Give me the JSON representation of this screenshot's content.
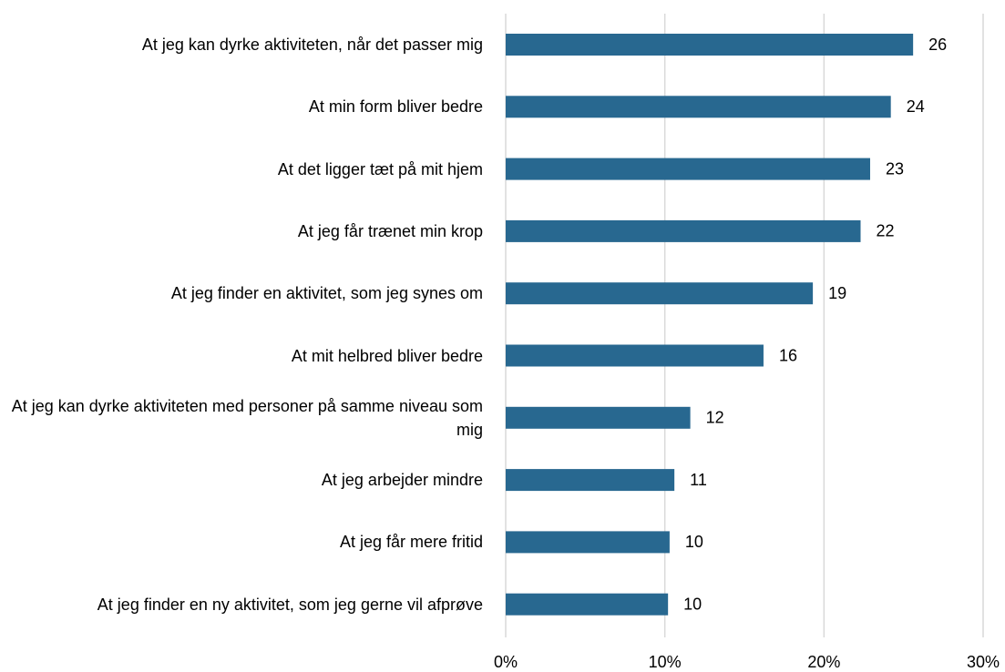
{
  "chart_data": {
    "type": "bar",
    "orientation": "horizontal",
    "categories": [
      "At jeg kan dyrke aktiviteten, når det passer mig",
      "At min form bliver bedre",
      "At det ligger tæt på mit hjem",
      "At jeg får trænet min krop",
      "At jeg finder en aktivitet, som jeg synes om",
      "At mit helbred bliver bedre",
      "At jeg kan dyrke aktiviteten med personer på samme niveau som mig",
      "At jeg arbejder mindre",
      "At jeg får mere fritid",
      "At jeg finder en ny aktivitet, som jeg gerne vil afprøve"
    ],
    "values": [
      25.6,
      24.2,
      22.9,
      22.3,
      19.3,
      16.2,
      11.6,
      10.6,
      10.3,
      10.2
    ],
    "value_labels": [
      "26",
      "24",
      "23",
      "22",
      "19",
      "16",
      "12",
      "11",
      "10",
      "10"
    ],
    "color": "#286890",
    "xlim": [
      0,
      30
    ],
    "xticks": [
      {
        "value": 0,
        "label": "0%"
      },
      {
        "value": 10,
        "label": "10%"
      },
      {
        "value": 20,
        "label": "20%"
      },
      {
        "value": 30,
        "label": "30%"
      }
    ],
    "grid": true
  }
}
